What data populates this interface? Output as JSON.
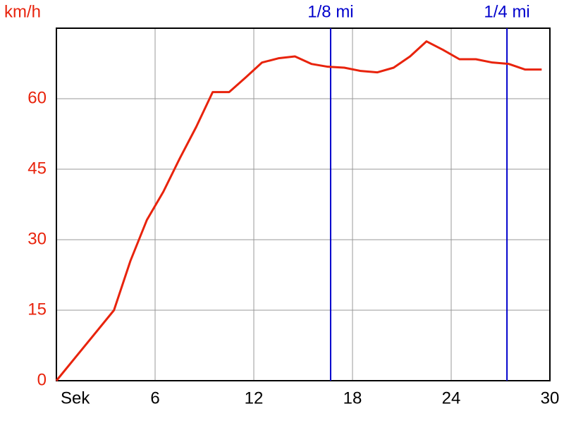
{
  "chart_data": {
    "type": "line",
    "y_label": "km/h",
    "x_label": "Sek",
    "x": [
      0,
      3.5,
      4.5,
      5.5,
      6.5,
      7.5,
      8.5,
      9.5,
      10.5,
      11.5,
      12.5,
      13.5,
      14.5,
      15.5,
      16.5,
      17.5,
      18.5,
      19.5,
      20.5,
      21.5,
      22.5,
      23.5,
      24.5,
      25.5,
      26.5,
      27.5,
      28.5,
      29.5
    ],
    "series": [
      {
        "color": "#e8230c",
        "values": [
          0,
          15,
          25.5,
          34.2,
          40.2,
          47.3,
          54,
          61.4,
          61.4,
          64.5,
          67.7,
          68.6,
          69,
          67.4,
          66.8,
          66.6,
          65.9,
          65.6,
          66.6,
          69,
          72.2,
          70.4,
          68.4,
          68.4,
          67.7,
          67.4,
          66.2,
          66.2
        ]
      }
    ],
    "markers": [
      {
        "label": "1/8 mi",
        "x": 16.67
      },
      {
        "label": "1/4 mi",
        "x": 27.39
      }
    ],
    "marker_color": "#0000cc",
    "xlim": [
      0,
      30
    ],
    "xticks": [
      6,
      12,
      18,
      24,
      30
    ],
    "ylim": [
      0,
      75
    ],
    "yticks": [
      0,
      15,
      30,
      45,
      60
    ],
    "grid": true
  }
}
